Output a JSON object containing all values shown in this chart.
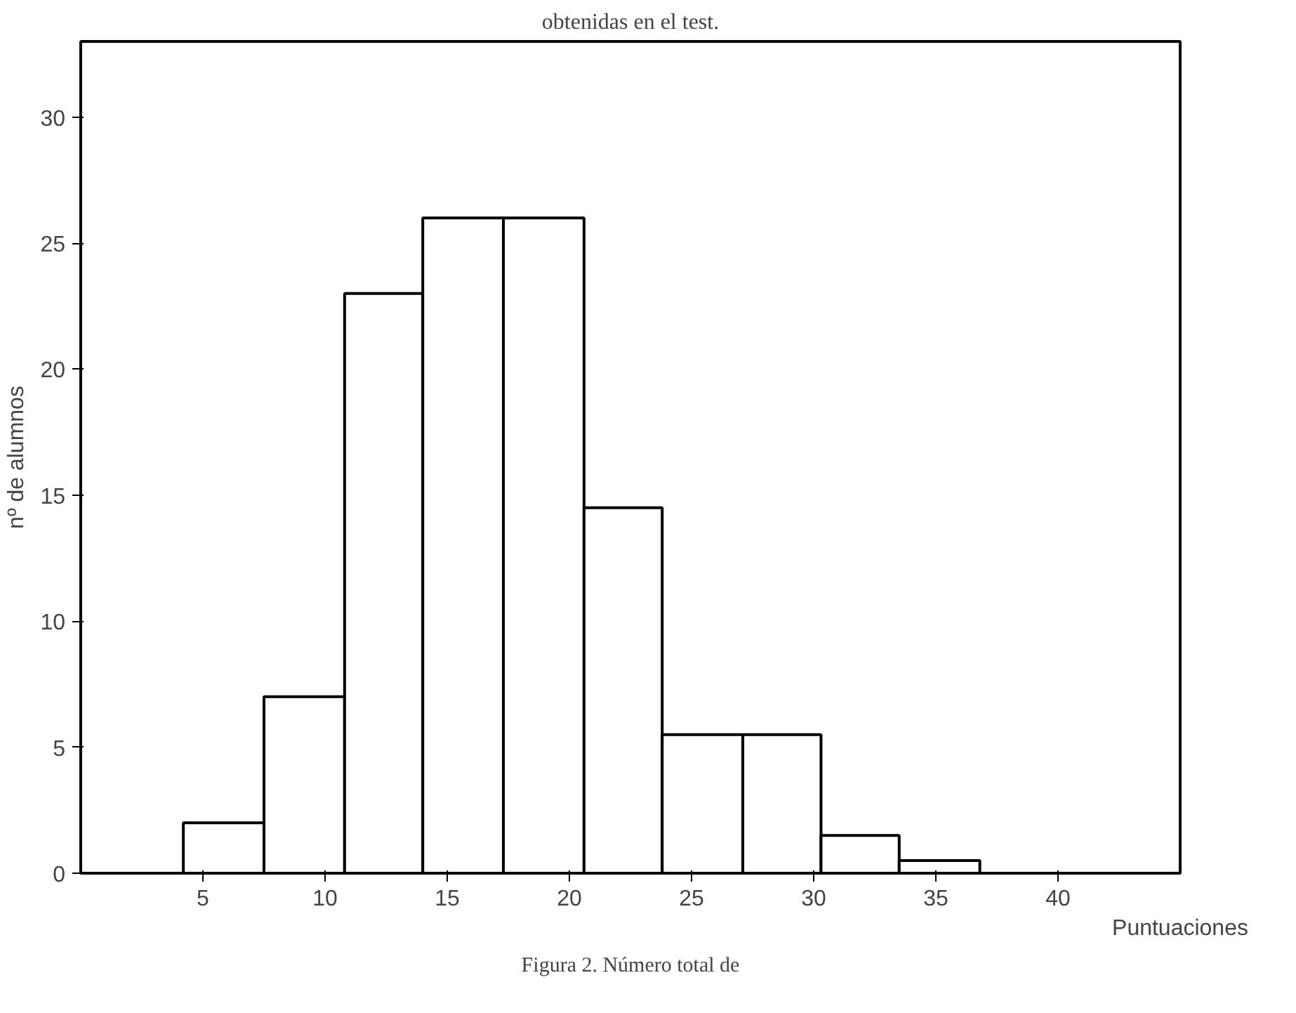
{
  "chart_data": {
    "type": "histogram",
    "title": "obtenidas en el test.",
    "xlabel": "Puntuaciones",
    "ylabel": "nº de alumnos",
    "bins": [
      4.2,
      7.5,
      10.8,
      14.0,
      17.3,
      20.6,
      23.8,
      27.1,
      30.3,
      33.5,
      36.8
    ],
    "values": [
      2,
      7,
      23,
      26,
      26,
      14.5,
      5.5,
      5.5,
      1.5,
      0.5
    ],
    "color": "#ffffff",
    "xlim": [
      0,
      45
    ],
    "ylim": [
      0,
      33
    ],
    "xticks": [
      5,
      10,
      15,
      20,
      25,
      30,
      35,
      40
    ],
    "yticks": [
      0,
      5,
      10,
      15,
      20,
      25,
      30
    ],
    "annotations": [
      "Figura 2. Número total de"
    ],
    "grid": false
  }
}
